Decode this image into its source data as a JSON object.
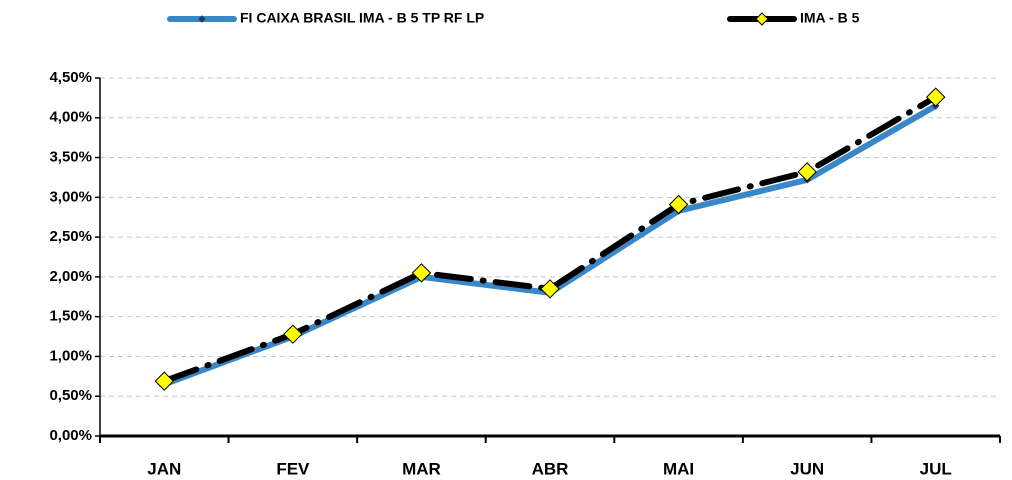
{
  "chart_data": {
    "type": "line",
    "categories": [
      "JAN",
      "FEV",
      "MAR",
      "ABR",
      "MAI",
      "JUN",
      "JUL"
    ],
    "series": [
      {
        "name": "FI CAIXA BRASIL IMA - B 5 TP RF LP",
        "color": "#3a87c8",
        "values": [
          0.65,
          1.25,
          2.0,
          1.8,
          2.83,
          3.22,
          4.15
        ]
      },
      {
        "name": "IMA - B 5",
        "color": "#000000",
        "values": [
          0.69,
          1.28,
          2.05,
          1.85,
          2.91,
          3.32,
          4.26
        ]
      }
    ],
    "ylim": [
      0,
      4.5
    ],
    "yticks": [
      {
        "value": 0,
        "label": "0,00%"
      },
      {
        "value": 0.5,
        "label": "0,50%"
      },
      {
        "value": 1,
        "label": "1,00%"
      },
      {
        "value": 1.5,
        "label": "1,50%"
      },
      {
        "value": 2,
        "label": "2,00%"
      },
      {
        "value": 2.5,
        "label": "2,50%"
      },
      {
        "value": 3,
        "label": "3,00%"
      },
      {
        "value": 3.5,
        "label": "3,50%"
      },
      {
        "value": 4,
        "label": "4,00%"
      },
      {
        "value": 4.5,
        "label": "4,50%"
      }
    ],
    "grid": true,
    "legend": "top"
  }
}
